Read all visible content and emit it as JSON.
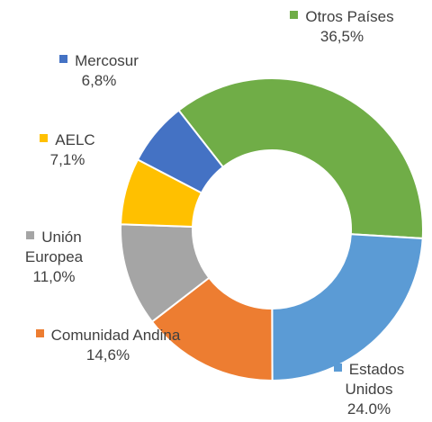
{
  "chart_data": {
    "type": "donut",
    "categories": [
      "Otros Países",
      "Estados Unidos",
      "Comunidad Andina",
      "Unión Europea",
      "AELC",
      "Mercosur"
    ],
    "values": [
      36.5,
      24.0,
      14.6,
      11.0,
      7.1,
      6.8
    ],
    "value_labels": [
      "36,5%",
      "24.0%",
      "14,6%",
      "11,0%",
      "7,1%",
      "6,8%"
    ],
    "colors": [
      "#70ad47",
      "#5b9bd5",
      "#ed7d31",
      "#a5a5a5",
      "#ffc000",
      "#4472c4"
    ]
  }
}
